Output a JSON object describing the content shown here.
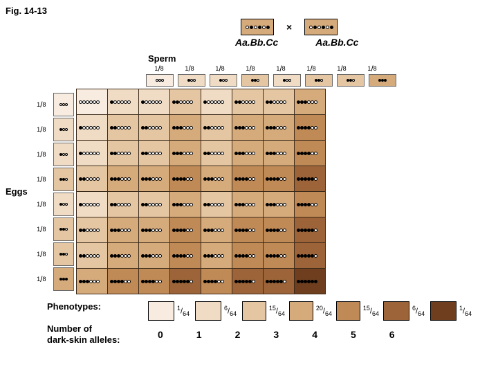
{
  "figure_label": "Fig. 14-13",
  "parent_genotype": "Aa.Bb.Cc",
  "cross_symbol": "×",
  "sperm_label": "Sperm",
  "eggs_label": "Eggs",
  "gamete_fraction": {
    "num": "1",
    "den": "8"
  },
  "gametes_dark_counts": [
    0,
    1,
    1,
    2,
    1,
    2,
    2,
    3
  ],
  "shade_colors": {
    "0": "#f8ece0",
    "1": "#f0dcc4",
    "2": "#e5c6a2",
    "3": "#d6ab7c",
    "4": "#c08a56",
    "5": "#9c6438",
    "6": "#6e3e1e"
  },
  "dot_dark": "#000000",
  "dot_light": "#ffffff",
  "phenotypes_label": "Phenotypes:",
  "allele_count_label_l1": "Number of",
  "allele_count_label_l2": "dark-skin alleles:",
  "phenotype_fractions": [
    {
      "num": "1",
      "den": "64"
    },
    {
      "num": "6",
      "den": "64"
    },
    {
      "num": "15",
      "den": "64"
    },
    {
      "num": "20",
      "den": "64"
    },
    {
      "num": "15",
      "den": "64"
    },
    {
      "num": "6",
      "den": "64"
    },
    {
      "num": "1",
      "den": "64"
    }
  ],
  "allele_counts": [
    "0",
    "1",
    "2",
    "3",
    "4",
    "5",
    "6"
  ]
}
